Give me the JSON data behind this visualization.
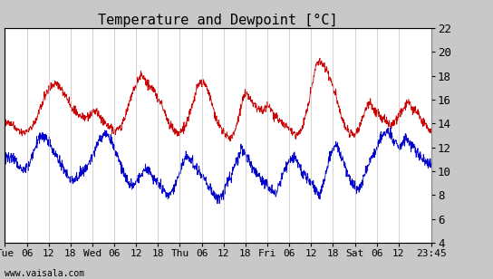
{
  "title": "Temperature and Dewpoint [°C]",
  "ylim": [
    4,
    22
  ],
  "yticks": [
    4,
    6,
    8,
    10,
    12,
    14,
    16,
    18,
    20,
    22
  ],
  "xtick_labels": [
    "Tue",
    "06",
    "12",
    "18",
    "Wed",
    "06",
    "12",
    "18",
    "Thu",
    "06",
    "12",
    "18",
    "Fri",
    "06",
    "12",
    "18",
    "Sat",
    "06",
    "12",
    "23:45"
  ],
  "xtick_positions": [
    0,
    6,
    12,
    18,
    24,
    30,
    36,
    42,
    48,
    54,
    60,
    66,
    72,
    78,
    84,
    90,
    96,
    102,
    108,
    117
  ],
  "x_total": 117,
  "watermark": "www.vaisala.com",
  "background_color": "#ffffff",
  "plot_bg_color": "#ffffff",
  "outer_bg_color": "#c8c8c8",
  "grid_color": "#c0c0c0",
  "border_color": "#000000",
  "temp_color": "#cc0000",
  "dewp_color": "#0000cc",
  "title_fontsize": 11,
  "tick_fontsize": 8,
  "temp_data": [
    14.2,
    14.1,
    14.0,
    13.9,
    13.7,
    13.5,
    13.4,
    13.3,
    13.2,
    13.3,
    13.4,
    13.6,
    13.8,
    14.1,
    14.5,
    15.0,
    15.5,
    16.0,
    16.5,
    16.8,
    17.0,
    17.2,
    17.3,
    17.2,
    17.0,
    16.8,
    16.5,
    16.2,
    15.8,
    15.5,
    15.2,
    14.9,
    14.8,
    14.6,
    14.5,
    14.5,
    14.6,
    14.7,
    14.8,
    14.9,
    15.0,
    14.8,
    14.5,
    14.2,
    14.0,
    13.8,
    13.6,
    13.5,
    13.4,
    13.5,
    13.6,
    13.8,
    14.2,
    14.8,
    15.5,
    16.0,
    16.5,
    17.0,
    17.5,
    17.8,
    18.0,
    17.8,
    17.5,
    17.2,
    17.0,
    16.8,
    16.5,
    16.2,
    15.8,
    15.5,
    15.0,
    14.5,
    14.0,
    13.8,
    13.5,
    13.3,
    13.2,
    13.3,
    13.5,
    13.8,
    14.2,
    14.8,
    15.5,
    16.2,
    16.8,
    17.2,
    17.5,
    17.5,
    17.2,
    16.8,
    16.2,
    15.5,
    14.8,
    14.2,
    13.8,
    13.5,
    13.2,
    13.0,
    12.9,
    12.8,
    13.0,
    13.5,
    14.2,
    15.0,
    15.8,
    16.2,
    16.5,
    16.3,
    16.0,
    15.7,
    15.5,
    15.3,
    15.2,
    15.0,
    15.2,
    15.5,
    15.3,
    15.0,
    14.8,
    14.5,
    14.3,
    14.2,
    14.0,
    13.8,
    13.6,
    13.5,
    13.3,
    13.2,
    13.0,
    13.2,
    13.5,
    14.0,
    14.8,
    15.5,
    16.5,
    17.5,
    18.5,
    19.0,
    19.2,
    19.0,
    18.8,
    18.5,
    18.0,
    17.5,
    17.0,
    16.5,
    15.8,
    15.0,
    14.2,
    13.8,
    13.5,
    13.3,
    13.2,
    13.0,
    13.2,
    13.5,
    14.0,
    14.5,
    15.0,
    15.5,
    15.8,
    15.5,
    15.2,
    15.0,
    14.8,
    14.5,
    14.3,
    14.2,
    14.0,
    13.8,
    14.0,
    14.2,
    14.5,
    14.8,
    15.0,
    15.2,
    15.5,
    15.8,
    15.5,
    15.2,
    15.0,
    14.8,
    14.5,
    14.2,
    14.0,
    13.8,
    13.5,
    13.3
  ],
  "dewp_data": [
    11.0,
    11.2,
    11.3,
    11.2,
    11.0,
    10.8,
    10.5,
    10.3,
    10.2,
    10.3,
    10.5,
    10.8,
    11.2,
    11.8,
    12.3,
    12.8,
    13.0,
    13.0,
    12.8,
    12.5,
    12.2,
    11.8,
    11.5,
    11.2,
    10.8,
    10.5,
    10.2,
    9.8,
    9.5,
    9.3,
    9.2,
    9.3,
    9.5,
    9.8,
    10.0,
    10.2,
    10.5,
    10.8,
    11.2,
    11.5,
    12.0,
    12.5,
    12.8,
    13.0,
    13.2,
    13.0,
    12.8,
    12.5,
    12.0,
    11.5,
    11.0,
    10.5,
    10.0,
    9.5,
    9.2,
    9.0,
    8.8,
    9.0,
    9.2,
    9.5,
    9.8,
    10.0,
    10.2,
    10.0,
    9.8,
    9.5,
    9.2,
    9.0,
    8.8,
    8.5,
    8.3,
    8.2,
    8.0,
    8.2,
    8.5,
    9.0,
    9.5,
    10.0,
    10.5,
    11.0,
    11.2,
    11.0,
    10.8,
    10.5,
    10.2,
    10.0,
    9.8,
    9.5,
    9.2,
    8.8,
    8.5,
    8.2,
    8.0,
    7.8,
    7.8,
    8.0,
    8.3,
    8.8,
    9.2,
    9.5,
    10.0,
    10.5,
    11.0,
    11.5,
    11.8,
    11.5,
    11.2,
    10.8,
    10.5,
    10.2,
    10.0,
    9.8,
    9.5,
    9.2,
    9.0,
    8.8,
    8.5,
    8.3,
    8.2,
    8.3,
    8.8,
    9.2,
    9.8,
    10.2,
    10.5,
    10.8,
    11.0,
    11.2,
    10.8,
    10.5,
    10.0,
    9.8,
    9.5,
    9.2,
    9.0,
    8.8,
    8.5,
    8.2,
    8.0,
    8.5,
    9.2,
    10.0,
    10.8,
    11.5,
    12.0,
    12.2,
    12.0,
    11.5,
    11.0,
    10.5,
    10.0,
    9.5,
    9.0,
    8.8,
    8.5,
    8.5,
    8.8,
    9.2,
    9.8,
    10.2,
    10.8,
    11.2,
    11.5,
    12.0,
    12.5,
    12.8,
    13.0,
    13.2,
    13.3,
    13.0,
    12.8,
    12.5,
    12.2,
    12.0,
    12.2,
    12.5,
    12.8,
    12.5,
    12.2,
    12.0,
    11.8,
    11.5,
    11.2,
    11.0,
    10.8,
    10.5,
    10.5,
    10.8
  ],
  "noise_seed": 42
}
